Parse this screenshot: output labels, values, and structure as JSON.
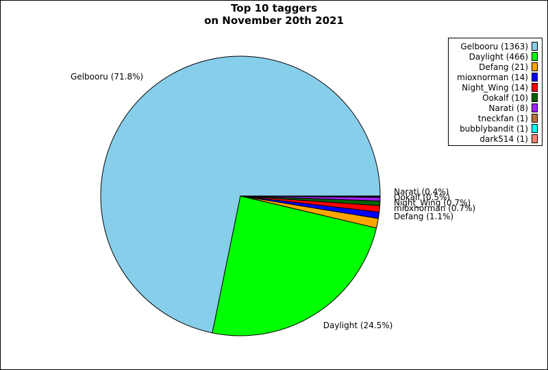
{
  "chart_data": {
    "type": "pie",
    "title": "Top 10 taggers",
    "subtitle": "on November 20th 2021",
    "slices": [
      {
        "label": "Gelbooru",
        "value": 1363,
        "pct_label": "Gelbooru (71.8%)",
        "legend_label": "Gelbooru (1363)",
        "color": "#87ceeb"
      },
      {
        "label": "Daylight",
        "value": 466,
        "pct_label": "Daylight (24.5%)",
        "legend_label": "Daylight (466)",
        "color": "#00ff00"
      },
      {
        "label": "Defang",
        "value": 21,
        "pct_label": "Defang (1.1%)",
        "legend_label": "Defang (21)",
        "color": "#ffa500"
      },
      {
        "label": "mioxnorman",
        "value": 14,
        "pct_label": "mioxnorman (0.7%)",
        "legend_label": "mioxnorman (14)",
        "color": "#0000ff"
      },
      {
        "label": "Night_Wing",
        "value": 14,
        "pct_label": "Night_Wing (0.7%)",
        "legend_label": "Night_Wing (14)",
        "color": "#ff0000"
      },
      {
        "label": "Ookalf",
        "value": 10,
        "pct_label": "Ookalf (0.5%)",
        "legend_label": "Ookalf (10)",
        "color": "#006400"
      },
      {
        "label": "Narati",
        "value": 8,
        "pct_label": "Narati (0.4%)",
        "legend_label": "Narati (8)",
        "color": "#a020f0"
      },
      {
        "label": "tneckfan",
        "value": 1,
        "pct_label": "",
        "legend_label": "tneckfan (1)",
        "color": "#b8733c"
      },
      {
        "label": "bubblybandit",
        "value": 1,
        "pct_label": "",
        "legend_label": "bubblybandit (1)",
        "color": "#00ffff"
      },
      {
        "label": "dark514",
        "value": 1,
        "pct_label": "",
        "legend_label": "dark514 (1)",
        "color": "#fa8072"
      }
    ],
    "legend_position": "top-right"
  }
}
